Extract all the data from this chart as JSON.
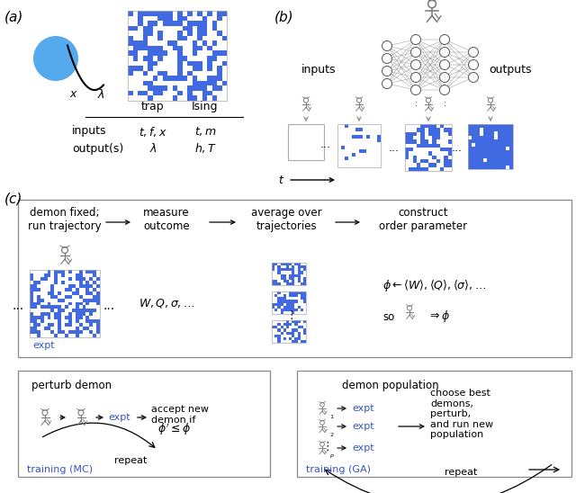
{
  "fig_width": 6.4,
  "fig_height": 5.48,
  "dpi": 100,
  "blue_color": "#4169E1",
  "expt_color": "#3355CC",
  "background": "#ffffff",
  "panel_a_label": "(a)",
  "panel_b_label": "(b)",
  "panel_c_label": "(c)",
  "table_col1": "trap",
  "table_col2": "Ising",
  "training_mc_text": "training (MC)",
  "training_ga_text": "training (GA)"
}
